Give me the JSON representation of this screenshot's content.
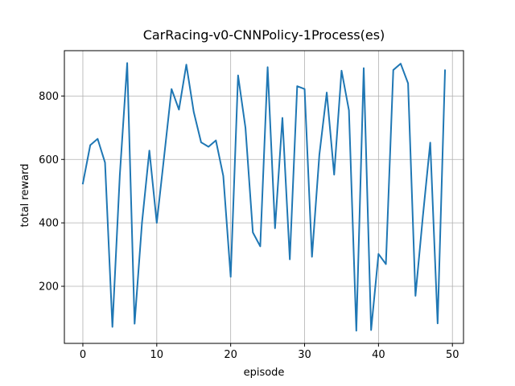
{
  "chart_data": {
    "type": "line",
    "title": "CarRacing-v0-CNNPolicy-1Process(es)",
    "xlabel": "episode",
    "ylabel": "total reward",
    "xlim": [
      -2.5,
      51.5
    ],
    "ylim": [
      20,
      943
    ],
    "xticks": [
      0,
      10,
      20,
      30,
      40,
      50
    ],
    "yticks": [
      200,
      400,
      600,
      800
    ],
    "grid": true,
    "series": [
      {
        "color": "#1f77b4",
        "x": [
          0,
          1,
          2,
          3,
          4,
          5,
          6,
          7,
          8,
          9,
          10,
          11,
          12,
          13,
          14,
          15,
          16,
          17,
          18,
          19,
          20,
          21,
          22,
          23,
          24,
          25,
          26,
          27,
          28,
          29,
          30,
          31,
          32,
          33,
          34,
          35,
          36,
          37,
          38,
          39,
          40,
          41,
          42,
          43,
          44,
          45,
          46,
          47,
          48,
          49
        ],
        "y": [
          524,
          645,
          665,
          590,
          72,
          550,
          904,
          82,
          400,
          628,
          400,
          610,
          822,
          757,
          899,
          750,
          654,
          640,
          660,
          548,
          230,
          865,
          700,
          370,
          326,
          891,
          383,
          731,
          285,
          831,
          822,
          293,
          615,
          811,
          552,
          880,
          755,
          60,
          888,
          62,
          302,
          270,
          882,
          902,
          840,
          170,
          420,
          653,
          83,
          881
        ]
      }
    ]
  }
}
